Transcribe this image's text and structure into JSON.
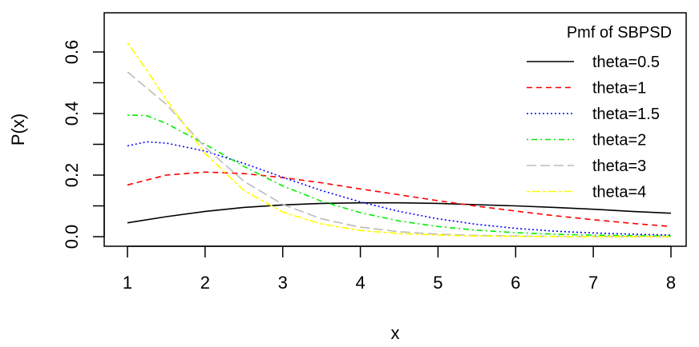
{
  "chart_data": {
    "type": "line",
    "title": "",
    "xlabel": "x",
    "ylabel": "P(x)",
    "xlim": [
      1,
      8
    ],
    "ylim": [
      0,
      0.6
    ],
    "x_ticks": [
      1,
      2,
      3,
      4,
      5,
      6,
      7,
      8
    ],
    "y_ticks": [
      0.0,
      0.2,
      0.4,
      0.6
    ],
    "y_tick_labels": [
      "0.0",
      "0.2",
      "0.4",
      "0.6"
    ],
    "grid": false,
    "legend": {
      "title": "Pmf of SBPSD",
      "placement": "top-right",
      "boxed": false
    },
    "series": [
      {
        "name": "theta=0.5",
        "color": "#000000",
        "dash": "solid",
        "x": [
          1,
          1.5,
          2,
          2.5,
          3,
          3.5,
          4,
          4.5,
          5,
          5.5,
          6,
          6.5,
          7,
          7.5,
          8
        ],
        "y": [
          0.045,
          0.065,
          0.082,
          0.095,
          0.103,
          0.108,
          0.11,
          0.11,
          0.108,
          0.104,
          0.1,
          0.095,
          0.089,
          0.082,
          0.076
        ]
      },
      {
        "name": "theta=1",
        "color": "#ff0000",
        "dash": "dashed",
        "x": [
          1,
          1.5,
          2,
          2.5,
          3,
          3.5,
          4,
          4.5,
          5,
          5.5,
          6,
          6.5,
          7,
          7.5,
          8
        ],
        "y": [
          0.168,
          0.2,
          0.21,
          0.205,
          0.192,
          0.175,
          0.155,
          0.136,
          0.117,
          0.099,
          0.083,
          0.068,
          0.055,
          0.043,
          0.033
        ]
      },
      {
        "name": "theta=1.5",
        "color": "#0000ff",
        "dash": "dotted",
        "x": [
          1,
          1.25,
          1.5,
          2,
          2.5,
          3,
          3.5,
          4,
          4.5,
          5,
          5.5,
          6,
          6.5,
          7,
          7.5,
          8
        ],
        "y": [
          0.295,
          0.308,
          0.304,
          0.278,
          0.238,
          0.193,
          0.15,
          0.113,
          0.082,
          0.058,
          0.04,
          0.027,
          0.018,
          0.012,
          0.008,
          0.005
        ]
      },
      {
        "name": "theta=2",
        "color": "#00ee00",
        "dash": "dotdash",
        "x": [
          1,
          1.25,
          1.5,
          2,
          2.5,
          3,
          3.5,
          4,
          4.5,
          5,
          5.5,
          6,
          6.5,
          7,
          7.5,
          8
        ],
        "y": [
          0.395,
          0.393,
          0.368,
          0.3,
          0.228,
          0.165,
          0.115,
          0.078,
          0.051,
          0.033,
          0.021,
          0.013,
          0.008,
          0.005,
          0.003,
          0.002
        ]
      },
      {
        "name": "theta=3",
        "color": "#bbbbbb",
        "dash": "longdash",
        "x": [
          1,
          1.5,
          2,
          2.5,
          3,
          3.5,
          4,
          4.5,
          5,
          5.5,
          6,
          6.5,
          7,
          7.5,
          8
        ],
        "y": [
          0.535,
          0.43,
          0.29,
          0.18,
          0.105,
          0.058,
          0.031,
          0.016,
          0.008,
          0.004,
          0.002,
          0.001,
          0.0005,
          0.0002,
          0.0001
        ]
      },
      {
        "name": "theta=4",
        "color": "#ffff00",
        "dash": "twodash",
        "x": [
          1,
          1.25,
          1.5,
          2,
          2.5,
          3,
          3.5,
          4,
          4.5,
          5,
          5.5,
          6,
          6.5,
          7,
          7.5,
          8
        ],
        "y": [
          0.63,
          0.54,
          0.445,
          0.27,
          0.15,
          0.08,
          0.041,
          0.02,
          0.01,
          0.005,
          0.002,
          0.001,
          0.0005,
          0.0002,
          0.0001,
          0.0
        ]
      }
    ]
  }
}
